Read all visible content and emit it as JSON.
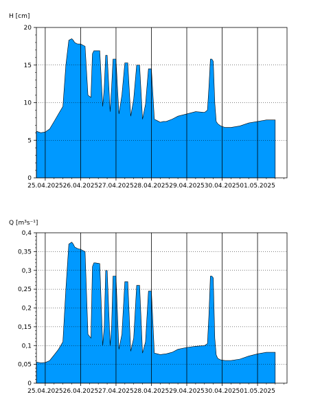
{
  "chart_data": [
    {
      "type": "area",
      "ylabel": "H [cm]",
      "ylim": [
        0,
        20
      ],
      "yticks": [
        "0",
        "5",
        "10",
        "15",
        "20"
      ],
      "xlim": [
        "2025-04-24T18:00",
        "2025-05-01T20:00"
      ],
      "xticks": [
        "25.04.2025",
        "26.04.2025",
        "27.04.2025",
        "28.04.2025",
        "29.04.2025",
        "30.04.2025",
        "01.05.2025"
      ],
      "color": "#0099ff",
      "grid": true,
      "x": [
        "2025-04-24T18:00",
        "2025-04-24T21:00",
        "2025-04-25T00:00",
        "2025-04-25T03:00",
        "2025-04-25T06:00",
        "2025-04-25T09:00",
        "2025-04-25T12:00",
        "2025-04-25T14:00",
        "2025-04-25T16:00",
        "2025-04-25T18:00",
        "2025-04-25T19:00",
        "2025-04-25T20:00",
        "2025-04-25T22:00",
        "2025-04-26T00:00",
        "2025-04-26T03:00",
        "2025-04-26T05:00",
        "2025-04-26T07:00",
        "2025-04-26T08:00",
        "2025-04-26T09:00",
        "2025-04-26T10:00",
        "2025-04-26T13:00",
        "2025-04-26T15:00",
        "2025-04-26T16:00",
        "2025-04-26T17:00",
        "2025-04-26T18:00",
        "2025-04-26T20:00",
        "2025-04-26T21:00",
        "2025-04-26T22:00",
        "2025-04-27T00:00",
        "2025-04-27T02:00",
        "2025-04-27T04:00",
        "2025-04-27T06:00",
        "2025-04-27T08:00",
        "2025-04-27T10:00",
        "2025-04-27T12:00",
        "2025-04-27T14:00",
        "2025-04-27T16:00",
        "2025-04-27T18:00",
        "2025-04-27T20:00",
        "2025-04-27T22:00",
        "2025-04-28T00:00",
        "2025-04-28T02:00",
        "2025-04-28T04:00",
        "2025-04-28T06:00",
        "2025-04-28T08:00",
        "2025-04-28T10:00",
        "2025-04-28T14:00",
        "2025-04-28T18:00",
        "2025-04-29T00:00",
        "2025-04-29T06:00",
        "2025-04-29T12:00",
        "2025-04-29T14:00",
        "2025-04-29T15:00",
        "2025-04-29T16:00",
        "2025-04-29T17:00",
        "2025-04-29T18:00",
        "2025-04-29T19:00",
        "2025-04-29T20:00",
        "2025-04-29T21:00",
        "2025-04-29T23:00",
        "2025-04-30T02:00",
        "2025-04-30T06:00",
        "2025-04-30T12:00",
        "2025-04-30T18:00",
        "2025-05-01T00:00",
        "2025-05-01T06:00",
        "2025-05-01T12:00"
      ],
      "y": [
        6.2,
        6.0,
        6.1,
        6.5,
        7.5,
        8.5,
        9.5,
        15.0,
        18.3,
        18.5,
        18.3,
        18.0,
        17.8,
        17.8,
        17.5,
        11.0,
        10.7,
        16.5,
        16.9,
        16.9,
        16.9,
        9.5,
        12.0,
        16.3,
        16.3,
        8.8,
        12.0,
        15.8,
        15.8,
        8.5,
        11.0,
        15.3,
        15.3,
        8.2,
        10.5,
        15.0,
        15.0,
        7.8,
        9.8,
        14.5,
        14.5,
        7.8,
        7.6,
        7.4,
        7.5,
        7.5,
        7.8,
        8.2,
        8.5,
        8.8,
        8.7,
        9.0,
        12.0,
        15.8,
        15.8,
        15.5,
        10.0,
        7.5,
        7.2,
        6.9,
        6.7,
        6.7,
        6.9,
        7.3,
        7.5,
        7.7,
        7.7
      ]
    },
    {
      "type": "area",
      "ylabel": "Q [m³s⁻¹]",
      "ylim": [
        0,
        0.4
      ],
      "yticks": [
        "0",
        "0,05",
        "0,1",
        "0,15",
        "0,2",
        "0,25",
        "0,3",
        "0,35",
        "0,4"
      ],
      "xlim": [
        "2025-04-24T18:00",
        "2025-05-01T20:00"
      ],
      "xticks": [
        "25.04.2025",
        "26.04.2025",
        "27.04.2025",
        "28.04.2025",
        "29.04.2025",
        "30.04.2025",
        "01.05.2025"
      ],
      "color": "#0099ff",
      "grid": true,
      "x": [
        "2025-04-24T18:00",
        "2025-04-24T21:00",
        "2025-04-25T00:00",
        "2025-04-25T03:00",
        "2025-04-25T06:00",
        "2025-04-25T09:00",
        "2025-04-25T12:00",
        "2025-04-25T14:00",
        "2025-04-25T16:00",
        "2025-04-25T18:00",
        "2025-04-25T19:00",
        "2025-04-25T20:00",
        "2025-04-25T22:00",
        "2025-04-26T00:00",
        "2025-04-26T03:00",
        "2025-04-26T05:00",
        "2025-04-26T07:00",
        "2025-04-26T08:00",
        "2025-04-26T09:00",
        "2025-04-26T10:00",
        "2025-04-26T13:00",
        "2025-04-26T15:00",
        "2025-04-26T16:00",
        "2025-04-26T17:00",
        "2025-04-26T18:00",
        "2025-04-26T20:00",
        "2025-04-26T21:00",
        "2025-04-26T22:00",
        "2025-04-27T00:00",
        "2025-04-27T02:00",
        "2025-04-27T04:00",
        "2025-04-27T06:00",
        "2025-04-27T08:00",
        "2025-04-27T10:00",
        "2025-04-27T12:00",
        "2025-04-27T14:00",
        "2025-04-27T16:00",
        "2025-04-27T18:00",
        "2025-04-27T20:00",
        "2025-04-27T22:00",
        "2025-04-28T00:00",
        "2025-04-28T02:00",
        "2025-04-28T04:00",
        "2025-04-28T06:00",
        "2025-04-28T08:00",
        "2025-04-28T10:00",
        "2025-04-28T14:00",
        "2025-04-28T18:00",
        "2025-04-29T00:00",
        "2025-04-29T06:00",
        "2025-04-29T12:00",
        "2025-04-29T14:00",
        "2025-04-29T15:00",
        "2025-04-29T16:00",
        "2025-04-29T17:00",
        "2025-04-29T18:00",
        "2025-04-29T19:00",
        "2025-04-29T20:00",
        "2025-04-29T21:00",
        "2025-04-29T23:00",
        "2025-04-30T02:00",
        "2025-04-30T06:00",
        "2025-04-30T12:00",
        "2025-04-30T18:00",
        "2025-05-01T00:00",
        "2025-05-01T06:00",
        "2025-05-01T12:00"
      ],
      "y": [
        0.056,
        0.054,
        0.055,
        0.06,
        0.075,
        0.09,
        0.11,
        0.25,
        0.37,
        0.375,
        0.37,
        0.362,
        0.358,
        0.356,
        0.35,
        0.13,
        0.12,
        0.31,
        0.32,
        0.32,
        0.318,
        0.1,
        0.15,
        0.3,
        0.3,
        0.1,
        0.15,
        0.285,
        0.285,
        0.09,
        0.13,
        0.27,
        0.27,
        0.085,
        0.12,
        0.26,
        0.26,
        0.08,
        0.11,
        0.245,
        0.245,
        0.08,
        0.078,
        0.076,
        0.077,
        0.078,
        0.082,
        0.09,
        0.095,
        0.098,
        0.1,
        0.105,
        0.18,
        0.285,
        0.285,
        0.28,
        0.12,
        0.075,
        0.066,
        0.062,
        0.06,
        0.06,
        0.064,
        0.072,
        0.078,
        0.082,
        0.082
      ]
    }
  ]
}
